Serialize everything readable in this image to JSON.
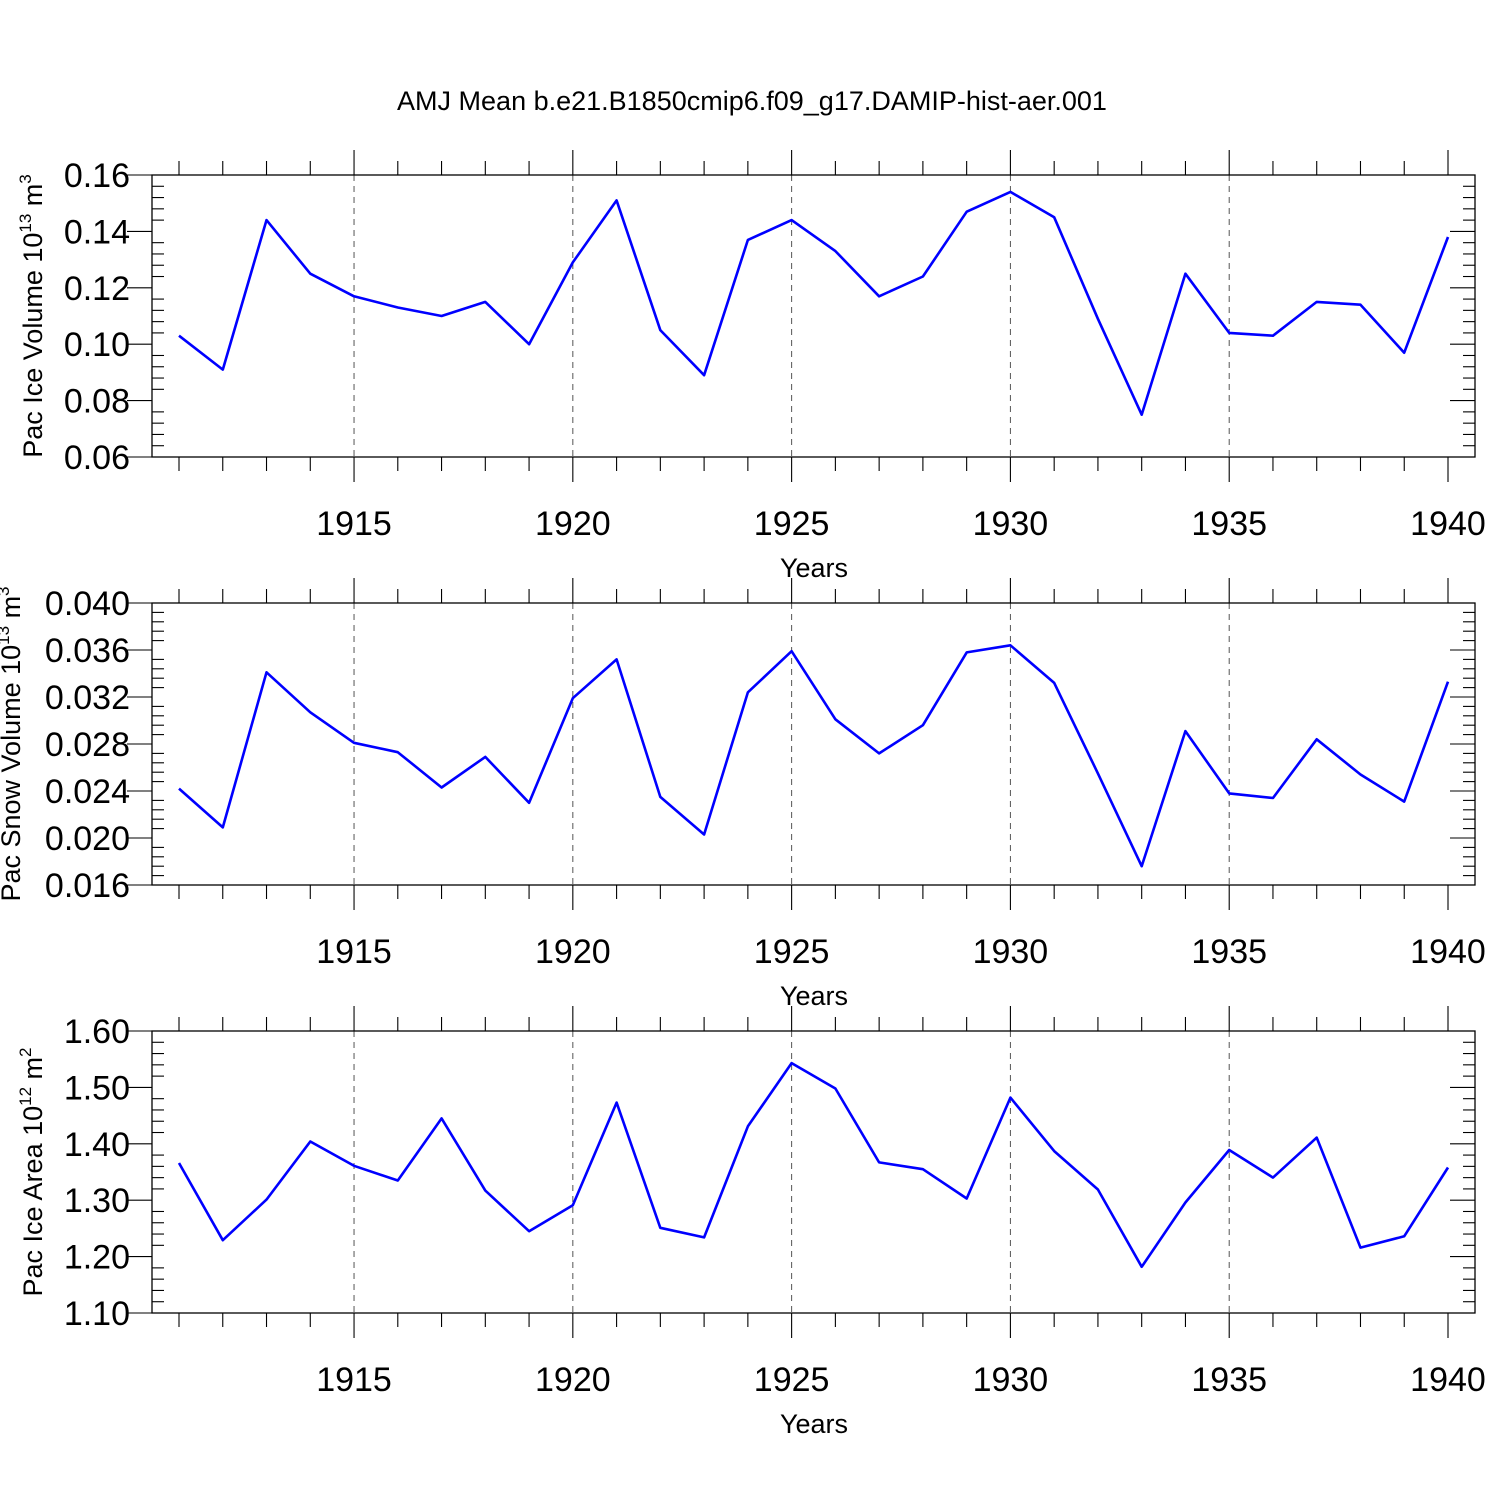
{
  "title": "AMJ Mean b.e21.B1850cmip6.f09_g17.DAMIP-hist-aer.001",
  "chart_data": [
    {
      "type": "line",
      "ylabel": "Pac Ice Volume 10",
      "ylabel_exp": "13",
      "ylabel_unit": " m",
      "ylabel_unit_exp": "3",
      "xlabel": "Years",
      "xlim": [
        1911,
        1940
      ],
      "ylim": [
        0.06,
        0.16
      ],
      "yticks": [
        0.06,
        0.08,
        0.1,
        0.12,
        0.14,
        0.16
      ],
      "ytick_labels": [
        "0.06",
        "0.08",
        "0.10",
        "0.12",
        "0.14",
        "0.16"
      ],
      "xticks": [
        1915,
        1920,
        1925,
        1930,
        1935,
        1940
      ],
      "xtick_labels": [
        "1915",
        "1920",
        "1925",
        "1930",
        "1935",
        "1940"
      ],
      "grid": "dashed vertical at major x ticks",
      "color": "#0000ff",
      "x": [
        1911,
        1912,
        1913,
        1914,
        1915,
        1916,
        1917,
        1918,
        1919,
        1920,
        1921,
        1922,
        1923,
        1924,
        1925,
        1926,
        1927,
        1928,
        1929,
        1930,
        1931,
        1932,
        1933,
        1934,
        1935,
        1936,
        1937,
        1938,
        1939,
        1940
      ],
      "values": [
        0.103,
        0.091,
        0.144,
        0.125,
        0.117,
        0.113,
        0.11,
        0.115,
        0.1,
        0.129,
        0.151,
        0.105,
        0.089,
        0.137,
        0.144,
        0.133,
        0.117,
        0.124,
        0.147,
        0.154,
        0.145,
        0.109,
        0.075,
        0.125,
        0.104,
        0.103,
        0.115,
        0.114,
        0.097,
        0.138
      ]
    },
    {
      "type": "line",
      "ylabel": "Pac Snow Volume 10",
      "ylabel_exp": "13",
      "ylabel_unit": " m",
      "ylabel_unit_exp": "3",
      "xlabel": "Years",
      "xlim": [
        1911,
        1940
      ],
      "ylim": [
        0.016,
        0.04
      ],
      "yticks": [
        0.016,
        0.02,
        0.024,
        0.028,
        0.032,
        0.036,
        0.04
      ],
      "ytick_labels": [
        "0.016",
        "0.020",
        "0.024",
        "0.028",
        "0.032",
        "0.036",
        "0.040"
      ],
      "xticks": [
        1915,
        1920,
        1925,
        1930,
        1935,
        1940
      ],
      "xtick_labels": [
        "1915",
        "1920",
        "1925",
        "1930",
        "1935",
        "1940"
      ],
      "grid": "dashed vertical at major x ticks",
      "color": "#0000ff",
      "x": [
        1911,
        1912,
        1913,
        1914,
        1915,
        1916,
        1917,
        1918,
        1919,
        1920,
        1921,
        1922,
        1923,
        1924,
        1925,
        1926,
        1927,
        1928,
        1929,
        1930,
        1931,
        1932,
        1933,
        1934,
        1935,
        1936,
        1937,
        1938,
        1939,
        1940
      ],
      "values": [
        0.0242,
        0.0209,
        0.0341,
        0.0307,
        0.0281,
        0.0273,
        0.0243,
        0.0269,
        0.023,
        0.0319,
        0.0352,
        0.0235,
        0.0203,
        0.0324,
        0.0359,
        0.0301,
        0.0272,
        0.0296,
        0.0358,
        0.0364,
        0.0332,
        0.0255,
        0.0176,
        0.0291,
        0.0238,
        0.0234,
        0.0284,
        0.0254,
        0.0231,
        0.0333
      ]
    },
    {
      "type": "line",
      "ylabel": "Pac Ice Area 10",
      "ylabel_exp": "12",
      "ylabel_unit": " m",
      "ylabel_unit_exp": "2",
      "xlabel": "Years",
      "xlim": [
        1911,
        1940
      ],
      "ylim": [
        1.1,
        1.6
      ],
      "yticks": [
        1.1,
        1.2,
        1.3,
        1.4,
        1.5,
        1.6
      ],
      "ytick_labels": [
        "1.10",
        "1.20",
        "1.30",
        "1.40",
        "1.50",
        "1.60"
      ],
      "xticks": [
        1915,
        1920,
        1925,
        1930,
        1935,
        1940
      ],
      "xtick_labels": [
        "1915",
        "1920",
        "1925",
        "1930",
        "1935",
        "1940"
      ],
      "grid": "dashed vertical at major x ticks",
      "color": "#0000ff",
      "x": [
        1911,
        1912,
        1913,
        1914,
        1915,
        1916,
        1917,
        1918,
        1919,
        1920,
        1921,
        1922,
        1923,
        1924,
        1925,
        1926,
        1927,
        1928,
        1929,
        1930,
        1931,
        1932,
        1933,
        1934,
        1935,
        1936,
        1937,
        1938,
        1939,
        1940
      ],
      "values": [
        1.366,
        1.229,
        1.301,
        1.404,
        1.361,
        1.335,
        1.445,
        1.317,
        1.245,
        1.291,
        1.473,
        1.251,
        1.234,
        1.431,
        1.543,
        1.498,
        1.367,
        1.355,
        1.303,
        1.482,
        1.387,
        1.319,
        1.182,
        1.296,
        1.389,
        1.34,
        1.411,
        1.216,
        1.236,
        1.358
      ]
    }
  ]
}
